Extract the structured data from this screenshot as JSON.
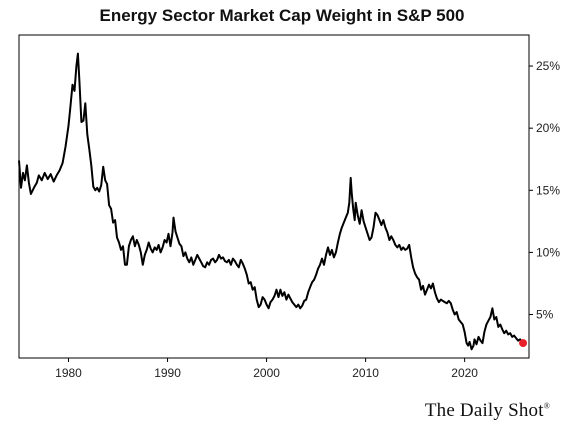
{
  "chart_data": {
    "type": "line",
    "title": "Energy Sector Market Cap Weight in S&P 500",
    "xlabel": "",
    "ylabel": "",
    "xlim": [
      1975,
      2026.5
    ],
    "ylim": [
      1.5,
      27.5
    ],
    "x_ticks": [
      {
        "value": 1980,
        "label": "1980"
      },
      {
        "value": 1990,
        "label": "1990"
      },
      {
        "value": 2000,
        "label": "2000"
      },
      {
        "value": 2010,
        "label": "2010"
      },
      {
        "value": 2020,
        "label": "2020"
      }
    ],
    "y_ticks": [
      {
        "value": 5,
        "label": "5%"
      },
      {
        "value": 10,
        "label": "10%"
      },
      {
        "value": 15,
        "label": "15%"
      },
      {
        "value": 20,
        "label": "20%"
      },
      {
        "value": 25,
        "label": "25%"
      }
    ],
    "y_axis_position": "right",
    "grid": false,
    "legend": "none",
    "series": [
      {
        "color": "#000000",
        "marker_last": {
          "color": "#e8202a"
        },
        "points": [
          [
            1975.0,
            17.4
          ],
          [
            1975.2,
            15.2
          ],
          [
            1975.4,
            16.4
          ],
          [
            1975.6,
            15.8
          ],
          [
            1975.8,
            17.0
          ],
          [
            1976.0,
            15.6
          ],
          [
            1976.2,
            14.7
          ],
          [
            1976.5,
            15.2
          ],
          [
            1976.8,
            15.6
          ],
          [
            1977.0,
            16.2
          ],
          [
            1977.3,
            15.8
          ],
          [
            1977.6,
            16.4
          ],
          [
            1977.9,
            15.9
          ],
          [
            1978.2,
            16.3
          ],
          [
            1978.5,
            15.7
          ],
          [
            1978.8,
            16.2
          ],
          [
            1979.1,
            16.6
          ],
          [
            1979.4,
            17.2
          ],
          [
            1979.7,
            18.5
          ],
          [
            1980.0,
            20.2
          ],
          [
            1980.2,
            21.8
          ],
          [
            1980.4,
            23.5
          ],
          [
            1980.6,
            23.0
          ],
          [
            1980.8,
            25.0
          ],
          [
            1980.95,
            26.0
          ],
          [
            1981.1,
            23.8
          ],
          [
            1981.3,
            20.5
          ],
          [
            1981.5,
            20.6
          ],
          [
            1981.7,
            22.0
          ],
          [
            1981.9,
            19.5
          ],
          [
            1982.1,
            18.3
          ],
          [
            1982.3,
            17.0
          ],
          [
            1982.5,
            15.3
          ],
          [
            1982.7,
            15.0
          ],
          [
            1982.9,
            15.2
          ],
          [
            1983.1,
            14.9
          ],
          [
            1983.3,
            15.4
          ],
          [
            1983.5,
            16.9
          ],
          [
            1983.7,
            15.8
          ],
          [
            1983.9,
            15.5
          ],
          [
            1984.1,
            13.8
          ],
          [
            1984.3,
            13.5
          ],
          [
            1984.5,
            12.4
          ],
          [
            1984.7,
            12.6
          ],
          [
            1984.9,
            11.2
          ],
          [
            1985.1,
            10.8
          ],
          [
            1985.3,
            10.2
          ],
          [
            1985.5,
            10.5
          ],
          [
            1985.7,
            9.0
          ],
          [
            1985.9,
            9.0
          ],
          [
            1986.1,
            10.5
          ],
          [
            1986.3,
            11.0
          ],
          [
            1986.5,
            11.3
          ],
          [
            1986.7,
            10.5
          ],
          [
            1986.9,
            11.0
          ],
          [
            1987.1,
            10.6
          ],
          [
            1987.3,
            10.0
          ],
          [
            1987.5,
            9.0
          ],
          [
            1987.7,
            9.8
          ],
          [
            1987.9,
            10.2
          ],
          [
            1988.1,
            10.8
          ],
          [
            1988.3,
            10.3
          ],
          [
            1988.5,
            10.0
          ],
          [
            1988.7,
            10.4
          ],
          [
            1988.9,
            10.2
          ],
          [
            1989.1,
            10.6
          ],
          [
            1989.3,
            10.0
          ],
          [
            1989.5,
            10.4
          ],
          [
            1989.7,
            11.0
          ],
          [
            1989.9,
            10.8
          ],
          [
            1990.1,
            11.5
          ],
          [
            1990.3,
            10.5
          ],
          [
            1990.5,
            11.6
          ],
          [
            1990.6,
            12.8
          ],
          [
            1990.8,
            11.7
          ],
          [
            1991.0,
            11.2
          ],
          [
            1991.2,
            10.7
          ],
          [
            1991.4,
            10.5
          ],
          [
            1991.6,
            9.7
          ],
          [
            1991.8,
            10.0
          ],
          [
            1992.0,
            9.5
          ],
          [
            1992.2,
            9.2
          ],
          [
            1992.4,
            9.6
          ],
          [
            1992.6,
            9.0
          ],
          [
            1992.8,
            9.4
          ],
          [
            1993.0,
            9.8
          ],
          [
            1993.2,
            9.5
          ],
          [
            1993.4,
            9.2
          ],
          [
            1993.6,
            8.9
          ],
          [
            1993.8,
            8.8
          ],
          [
            1994.0,
            9.2
          ],
          [
            1994.2,
            9.0
          ],
          [
            1994.4,
            9.4
          ],
          [
            1994.6,
            9.5
          ],
          [
            1994.8,
            9.2
          ],
          [
            1995.0,
            9.4
          ],
          [
            1995.2,
            9.8
          ],
          [
            1995.4,
            9.5
          ],
          [
            1995.6,
            9.6
          ],
          [
            1995.8,
            9.3
          ],
          [
            1996.0,
            9.2
          ],
          [
            1996.2,
            9.4
          ],
          [
            1996.4,
            9.0
          ],
          [
            1996.6,
            9.5
          ],
          [
            1996.8,
            9.3
          ],
          [
            1997.0,
            9.0
          ],
          [
            1997.2,
            8.8
          ],
          [
            1997.4,
            9.4
          ],
          [
            1997.6,
            9.1
          ],
          [
            1997.8,
            8.7
          ],
          [
            1998.0,
            8.2
          ],
          [
            1998.2,
            7.5
          ],
          [
            1998.4,
            7.6
          ],
          [
            1998.6,
            7.0
          ],
          [
            1998.8,
            7.2
          ],
          [
            1999.0,
            6.2
          ],
          [
            1999.2,
            5.6
          ],
          [
            1999.4,
            5.8
          ],
          [
            1999.6,
            6.4
          ],
          [
            1999.8,
            6.2
          ],
          [
            2000.0,
            5.8
          ],
          [
            2000.2,
            5.5
          ],
          [
            2000.4,
            6.0
          ],
          [
            2000.6,
            6.2
          ],
          [
            2000.8,
            6.5
          ],
          [
            2001.0,
            7.0
          ],
          [
            2001.2,
            6.4
          ],
          [
            2001.4,
            7.0
          ],
          [
            2001.6,
            6.5
          ],
          [
            2001.8,
            6.8
          ],
          [
            2002.0,
            6.2
          ],
          [
            2002.2,
            6.6
          ],
          [
            2002.4,
            6.3
          ],
          [
            2002.6,
            6.0
          ],
          [
            2002.8,
            5.8
          ],
          [
            2003.0,
            5.6
          ],
          [
            2003.2,
            5.8
          ],
          [
            2003.4,
            5.5
          ],
          [
            2003.6,
            5.7
          ],
          [
            2003.8,
            6.1
          ],
          [
            2004.0,
            6.2
          ],
          [
            2004.2,
            6.8
          ],
          [
            2004.4,
            7.2
          ],
          [
            2004.6,
            7.6
          ],
          [
            2004.8,
            7.8
          ],
          [
            2005.0,
            8.2
          ],
          [
            2005.2,
            8.7
          ],
          [
            2005.4,
            9.0
          ],
          [
            2005.6,
            9.5
          ],
          [
            2005.8,
            9.0
          ],
          [
            2006.0,
            9.8
          ],
          [
            2006.2,
            10.4
          ],
          [
            2006.4,
            9.8
          ],
          [
            2006.6,
            10.2
          ],
          [
            2006.8,
            9.6
          ],
          [
            2007.0,
            10.0
          ],
          [
            2007.2,
            10.8
          ],
          [
            2007.4,
            11.5
          ],
          [
            2007.6,
            12.0
          ],
          [
            2007.8,
            12.4
          ],
          [
            2008.0,
            12.8
          ],
          [
            2008.2,
            13.2
          ],
          [
            2008.35,
            14.0
          ],
          [
            2008.5,
            16.0
          ],
          [
            2008.6,
            14.8
          ],
          [
            2008.75,
            13.5
          ],
          [
            2008.9,
            12.6
          ],
          [
            2009.0,
            14.0
          ],
          [
            2009.2,
            13.0
          ],
          [
            2009.4,
            12.3
          ],
          [
            2009.6,
            13.4
          ],
          [
            2009.8,
            12.5
          ],
          [
            2010.0,
            12.0
          ],
          [
            2010.2,
            11.5
          ],
          [
            2010.4,
            11.0
          ],
          [
            2010.6,
            11.2
          ],
          [
            2010.8,
            12.0
          ],
          [
            2011.0,
            13.2
          ],
          [
            2011.2,
            13.0
          ],
          [
            2011.4,
            12.6
          ],
          [
            2011.6,
            12.2
          ],
          [
            2011.8,
            12.6
          ],
          [
            2012.0,
            12.0
          ],
          [
            2012.2,
            11.6
          ],
          [
            2012.4,
            11.0
          ],
          [
            2012.6,
            11.3
          ],
          [
            2012.8,
            11.0
          ],
          [
            2013.0,
            10.6
          ],
          [
            2013.2,
            10.4
          ],
          [
            2013.4,
            10.6
          ],
          [
            2013.6,
            10.2
          ],
          [
            2013.8,
            10.4
          ],
          [
            2014.0,
            10.2
          ],
          [
            2014.2,
            10.3
          ],
          [
            2014.4,
            10.6
          ],
          [
            2014.6,
            9.6
          ],
          [
            2014.8,
            8.8
          ],
          [
            2015.0,
            8.3
          ],
          [
            2015.2,
            8.0
          ],
          [
            2015.4,
            7.8
          ],
          [
            2015.6,
            7.0
          ],
          [
            2015.8,
            7.3
          ],
          [
            2016.0,
            6.6
          ],
          [
            2016.2,
            7.0
          ],
          [
            2016.4,
            7.4
          ],
          [
            2016.6,
            7.1
          ],
          [
            2016.8,
            7.5
          ],
          [
            2017.0,
            6.8
          ],
          [
            2017.2,
            6.3
          ],
          [
            2017.4,
            6.0
          ],
          [
            2017.6,
            6.2
          ],
          [
            2017.8,
            6.1
          ],
          [
            2018.0,
            6.0
          ],
          [
            2018.2,
            5.9
          ],
          [
            2018.4,
            6.1
          ],
          [
            2018.6,
            5.9
          ],
          [
            2018.8,
            5.4
          ],
          [
            2019.0,
            5.0
          ],
          [
            2019.2,
            5.2
          ],
          [
            2019.4,
            4.6
          ],
          [
            2019.6,
            4.4
          ],
          [
            2019.8,
            4.2
          ],
          [
            2020.0,
            3.6
          ],
          [
            2020.2,
            2.7
          ],
          [
            2020.35,
            2.5
          ],
          [
            2020.5,
            2.8
          ],
          [
            2020.7,
            2.2
          ],
          [
            2020.9,
            2.5
          ],
          [
            2021.0,
            3.0
          ],
          [
            2021.2,
            2.6
          ],
          [
            2021.4,
            3.2
          ],
          [
            2021.6,
            2.9
          ],
          [
            2021.8,
            2.7
          ],
          [
            2022.0,
            3.6
          ],
          [
            2022.2,
            4.2
          ],
          [
            2022.4,
            4.5
          ],
          [
            2022.6,
            4.8
          ],
          [
            2022.8,
            5.5
          ],
          [
            2023.0,
            4.6
          ],
          [
            2023.2,
            4.8
          ],
          [
            2023.4,
            4.0
          ],
          [
            2023.6,
            4.2
          ],
          [
            2023.8,
            3.8
          ],
          [
            2024.0,
            3.5
          ],
          [
            2024.2,
            3.7
          ],
          [
            2024.4,
            3.4
          ],
          [
            2024.6,
            3.5
          ],
          [
            2024.8,
            3.2
          ],
          [
            2025.0,
            3.3
          ],
          [
            2025.2,
            3.1
          ],
          [
            2025.4,
            2.9
          ],
          [
            2025.6,
            3.0
          ],
          [
            2025.8,
            2.8
          ],
          [
            2025.9,
            2.7
          ]
        ]
      }
    ]
  },
  "branding": {
    "text": "The Daily Shot",
    "mark": "®"
  }
}
